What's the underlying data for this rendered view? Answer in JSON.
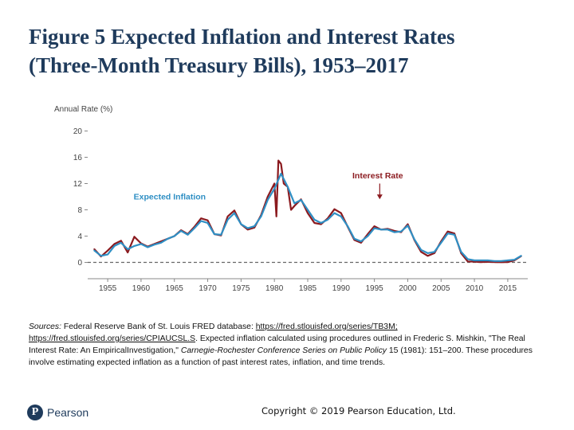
{
  "slide": {
    "title_line1": "Figure 5 Expected Inflation and Interest Rates",
    "title_line2": "(Three-Month Treasury Bills), 1953–2017"
  },
  "colors": {
    "title": "#1f3b5c",
    "interest_rate": "#8b1a1f",
    "expected_inflation": "#2f8fc4",
    "axis_text": "#444444",
    "zero_line": "#666666"
  },
  "chart_data": {
    "type": "line",
    "ylabel": "Annual Rate (%)",
    "ylim": [
      -2,
      22
    ],
    "yticks": [
      0,
      4,
      8,
      12,
      16,
      20
    ],
    "xlim": [
      1952,
      2018
    ],
    "xticks": [
      1955,
      1960,
      1965,
      1970,
      1975,
      1980,
      1985,
      1990,
      1995,
      2000,
      2005,
      2010,
      2015
    ],
    "grid": false,
    "annotations": [
      {
        "text": "Interest Rate",
        "series": "Interest Rate"
      },
      {
        "text": "Expected Inflation",
        "series": "Expected Inflation"
      }
    ],
    "series": [
      {
        "name": "Interest Rate",
        "color": "#8b1a1f",
        "x": [
          1953,
          1954,
          1955,
          1956,
          1957,
          1958,
          1959,
          1960,
          1961,
          1962,
          1963,
          1964,
          1965,
          1966,
          1967,
          1968,
          1969,
          1970,
          1971,
          1972,
          1973,
          1974,
          1975,
          1976,
          1977,
          1978,
          1979,
          1980,
          1980.3,
          1980.6,
          1981,
          1981.4,
          1982,
          1982.5,
          1983,
          1984,
          1985,
          1986,
          1987,
          1988,
          1989,
          1990,
          1991,
          1992,
          1993,
          1994,
          1995,
          1996,
          1997,
          1998,
          1999,
          2000,
          2001,
          2002,
          2003,
          2004,
          2005,
          2006,
          2007,
          2008,
          2009,
          2010,
          2011,
          2012,
          2013,
          2014,
          2015,
          2016,
          2017
        ],
        "values": [
          2.0,
          0.9,
          1.8,
          2.8,
          3.3,
          1.5,
          3.9,
          2.9,
          2.4,
          2.8,
          3.2,
          3.6,
          4.0,
          4.9,
          4.3,
          5.4,
          6.7,
          6.4,
          4.3,
          4.1,
          7.0,
          7.9,
          5.8,
          5.0,
          5.3,
          7.2,
          10.0,
          12.0,
          7.0,
          15.5,
          15.0,
          12.0,
          11.5,
          8.0,
          8.6,
          9.6,
          7.5,
          6.0,
          5.8,
          6.7,
          8.1,
          7.5,
          5.4,
          3.4,
          3.0,
          4.3,
          5.5,
          5.0,
          5.1,
          4.8,
          4.6,
          5.8,
          3.4,
          1.6,
          1.0,
          1.4,
          3.2,
          4.7,
          4.4,
          1.4,
          0.15,
          0.1,
          0.05,
          0.08,
          0.05,
          0.03,
          0.05,
          0.3,
          0.95
        ]
      },
      {
        "name": "Expected Inflation",
        "color": "#2f8fc4",
        "x": [
          1953,
          1954,
          1955,
          1956,
          1957,
          1958,
          1959,
          1960,
          1961,
          1962,
          1963,
          1964,
          1965,
          1966,
          1967,
          1968,
          1969,
          1970,
          1971,
          1972,
          1973,
          1974,
          1975,
          1976,
          1977,
          1978,
          1979,
          1980,
          1981,
          1982,
          1983,
          1984,
          1985,
          1986,
          1987,
          1988,
          1989,
          1990,
          1991,
          1992,
          1993,
          1994,
          1995,
          1996,
          1997,
          1998,
          1999,
          2000,
          2001,
          2002,
          2003,
          2004,
          2005,
          2006,
          2007,
          2008,
          2009,
          2010,
          2011,
          2012,
          2013,
          2014,
          2015,
          2016,
          2017
        ],
        "values": [
          1.8,
          1.0,
          1.2,
          2.5,
          3.0,
          2.0,
          2.5,
          2.8,
          2.3,
          2.7,
          3.0,
          3.6,
          4.0,
          4.8,
          4.2,
          5.2,
          6.3,
          6.0,
          4.3,
          4.2,
          6.5,
          7.5,
          5.8,
          5.2,
          5.5,
          7.0,
          9.5,
          11.2,
          13.5,
          11.5,
          9.0,
          9.5,
          8.0,
          6.5,
          6.0,
          6.5,
          7.5,
          7.0,
          5.5,
          3.6,
          3.2,
          4.0,
          5.2,
          5.0,
          5.0,
          4.6,
          4.7,
          5.6,
          3.5,
          1.9,
          1.4,
          1.6,
          3.0,
          4.4,
          4.2,
          1.6,
          0.5,
          0.3,
          0.3,
          0.3,
          0.2,
          0.2,
          0.3,
          0.4,
          1.0
        ]
      }
    ]
  },
  "sources": {
    "label": "Sources:",
    "text1": " Federal Reserve Bank of St. Louis FRED database: ",
    "link1": "https://fred.stlouisfed.org/series/TB3M;",
    "link2": "https://fred.stlouisfed.org/series/CPIAUCSL.S",
    "text2": ". Expected inflation calculated using procedures outlined in Frederic S. Mishkin, \"The Real Interest Rate: An EmpiricalInvestigation,\" ",
    "journal": "Carnegie-Rochester Conference Series on Public Policy",
    "text3": " 15 (1981): 151–200. These procedures involve estimating expected inflation as a function of past interest rates, inflation, and time trends."
  },
  "footer": {
    "logo_letter": "P",
    "logo_text": "Pearson",
    "copyright": "Copyright © 2019 Pearson Education, Ltd."
  }
}
